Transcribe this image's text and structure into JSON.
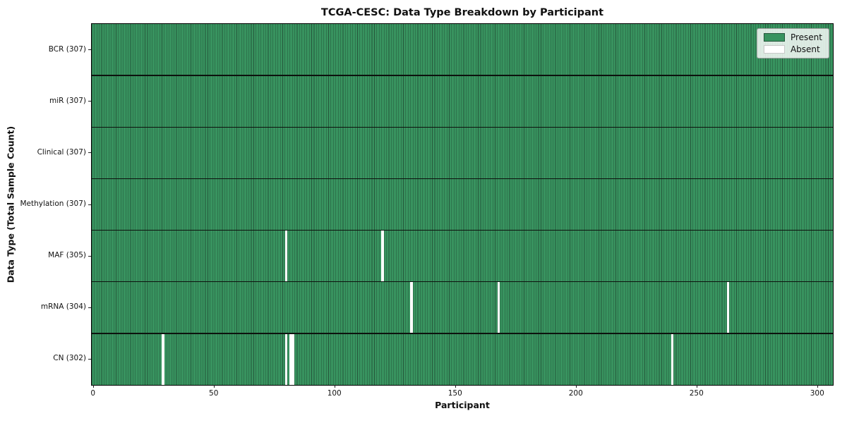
{
  "title": "TCGA-CESC: Data Type Breakdown by Participant",
  "colors": {
    "present": "#38935f",
    "cell_edge": "#25573b",
    "absent": "#ffffff",
    "row_separator": "#0d120e",
    "frame": "#000000",
    "tick": "#222222",
    "legend_border": "#a0a0a0"
  },
  "legend": {
    "present_label": "Present",
    "absent_label": "Absent"
  },
  "chart_data": {
    "type": "heatmap",
    "title": "TCGA-CESC: Data Type Breakdown by Participant",
    "xlabel": "Participant",
    "ylabel": "Data Type (Total Sample Count)",
    "n_participants": 307,
    "x_range": [
      0,
      307
    ],
    "x_ticks": [
      0,
      50,
      100,
      150,
      200,
      250,
      300
    ],
    "grid": false,
    "legend_position": "upper right",
    "legend": [
      {
        "label": "Present",
        "color": "#38935f"
      },
      {
        "label": "Absent",
        "color": "#ffffff"
      }
    ],
    "rows": [
      {
        "name": "BCR",
        "label": "BCR (307)",
        "present_count": 307,
        "absent_participants": []
      },
      {
        "name": "miR",
        "label": "miR (307)",
        "present_count": 307,
        "absent_participants": []
      },
      {
        "name": "Clinical",
        "label": "Clinical (307)",
        "present_count": 307,
        "absent_participants": []
      },
      {
        "name": "Methylation",
        "label": "Methylation (307)",
        "present_count": 307,
        "absent_participants": []
      },
      {
        "name": "MAF",
        "label": "MAF (305)",
        "present_count": 305,
        "absent_participants": [
          80,
          120
        ]
      },
      {
        "name": "mRNA",
        "label": "mRNA (304)",
        "present_count": 304,
        "absent_participants": [
          132,
          168,
          263
        ]
      },
      {
        "name": "CN",
        "label": "CN (302)",
        "present_count": 302,
        "absent_participants": [
          29,
          80,
          82,
          83,
          240
        ]
      }
    ]
  }
}
